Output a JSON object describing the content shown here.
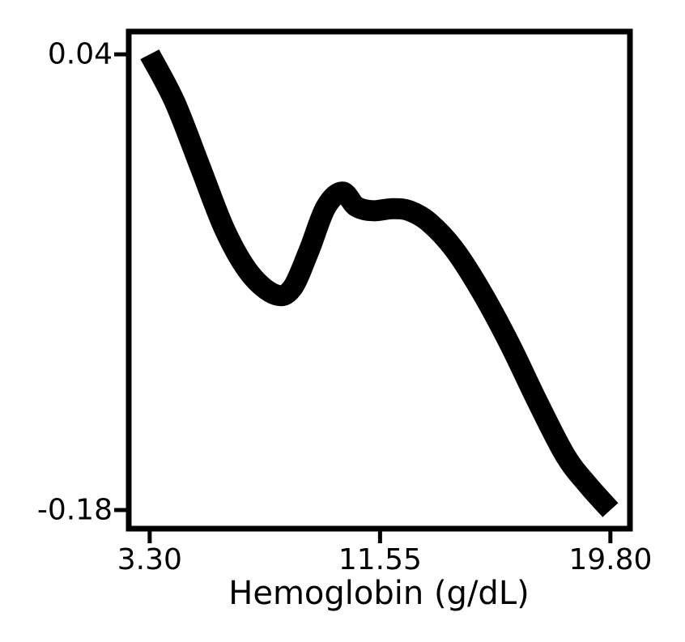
{
  "chart_data": {
    "type": "line",
    "title": "",
    "xlabel": "Hemoglobin (g/dL)",
    "ylabel": "",
    "xlim": [
      2.55,
      20.5
    ],
    "ylim": [
      -0.189,
      0.051
    ],
    "x_ticks": [
      3.3,
      11.55,
      19.8
    ],
    "x_tick_labels": [
      "3.30",
      "11.55",
      "19.80"
    ],
    "y_ticks": [
      0.04,
      -0.18
    ],
    "y_tick_labels": [
      "0.04",
      "-0.18"
    ],
    "grid": false,
    "series": [
      {
        "color": "#000000",
        "x": [
          3.3,
          4.2,
          5.1,
          6.0,
          6.9,
          7.8,
          8.4,
          9.0,
          9.6,
          10.2,
          10.7,
          11.3,
          12.0,
          12.6,
          13.3,
          14.2,
          15.2,
          16.2,
          17.2,
          18.2,
          19.0,
          19.8
        ],
        "y": [
          0.04,
          0.017,
          -0.014,
          -0.045,
          -0.066,
          -0.076,
          -0.073,
          -0.055,
          -0.034,
          -0.0265,
          -0.0335,
          -0.0355,
          -0.0345,
          -0.0355,
          -0.041,
          -0.054,
          -0.075,
          -0.1,
          -0.128,
          -0.154,
          -0.168,
          -0.18
        ]
      }
    ]
  }
}
